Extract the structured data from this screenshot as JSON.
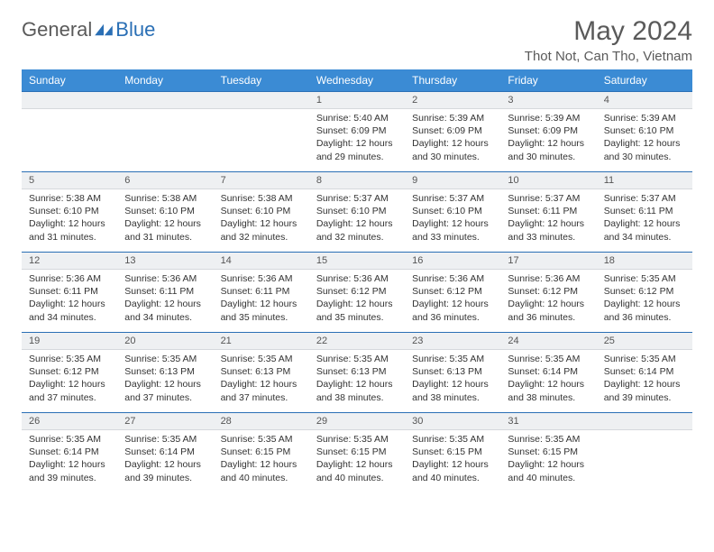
{
  "logo": {
    "general": "General",
    "blue": "Blue"
  },
  "header": {
    "title": "May 2024",
    "location": "Thot Not, Can Tho, Vietnam"
  },
  "colors": {
    "header_bg": "#3b8bd4",
    "border": "#2a6fb5",
    "daynum_bg": "#eef0f2",
    "text": "#333333",
    "muted": "#5a5a5a"
  },
  "weekdays": [
    "Sunday",
    "Monday",
    "Tuesday",
    "Wednesday",
    "Thursday",
    "Friday",
    "Saturday"
  ],
  "weeks": [
    [
      null,
      null,
      null,
      {
        "n": "1",
        "sr": "5:40 AM",
        "ss": "6:09 PM",
        "dl": "12 hours and 29 minutes."
      },
      {
        "n": "2",
        "sr": "5:39 AM",
        "ss": "6:09 PM",
        "dl": "12 hours and 30 minutes."
      },
      {
        "n": "3",
        "sr": "5:39 AM",
        "ss": "6:09 PM",
        "dl": "12 hours and 30 minutes."
      },
      {
        "n": "4",
        "sr": "5:39 AM",
        "ss": "6:10 PM",
        "dl": "12 hours and 30 minutes."
      }
    ],
    [
      {
        "n": "5",
        "sr": "5:38 AM",
        "ss": "6:10 PM",
        "dl": "12 hours and 31 minutes."
      },
      {
        "n": "6",
        "sr": "5:38 AM",
        "ss": "6:10 PM",
        "dl": "12 hours and 31 minutes."
      },
      {
        "n": "7",
        "sr": "5:38 AM",
        "ss": "6:10 PM",
        "dl": "12 hours and 32 minutes."
      },
      {
        "n": "8",
        "sr": "5:37 AM",
        "ss": "6:10 PM",
        "dl": "12 hours and 32 minutes."
      },
      {
        "n": "9",
        "sr": "5:37 AM",
        "ss": "6:10 PM",
        "dl": "12 hours and 33 minutes."
      },
      {
        "n": "10",
        "sr": "5:37 AM",
        "ss": "6:11 PM",
        "dl": "12 hours and 33 minutes."
      },
      {
        "n": "11",
        "sr": "5:37 AM",
        "ss": "6:11 PM",
        "dl": "12 hours and 34 minutes."
      }
    ],
    [
      {
        "n": "12",
        "sr": "5:36 AM",
        "ss": "6:11 PM",
        "dl": "12 hours and 34 minutes."
      },
      {
        "n": "13",
        "sr": "5:36 AM",
        "ss": "6:11 PM",
        "dl": "12 hours and 34 minutes."
      },
      {
        "n": "14",
        "sr": "5:36 AM",
        "ss": "6:11 PM",
        "dl": "12 hours and 35 minutes."
      },
      {
        "n": "15",
        "sr": "5:36 AM",
        "ss": "6:12 PM",
        "dl": "12 hours and 35 minutes."
      },
      {
        "n": "16",
        "sr": "5:36 AM",
        "ss": "6:12 PM",
        "dl": "12 hours and 36 minutes."
      },
      {
        "n": "17",
        "sr": "5:36 AM",
        "ss": "6:12 PM",
        "dl": "12 hours and 36 minutes."
      },
      {
        "n": "18",
        "sr": "5:35 AM",
        "ss": "6:12 PM",
        "dl": "12 hours and 36 minutes."
      }
    ],
    [
      {
        "n": "19",
        "sr": "5:35 AM",
        "ss": "6:12 PM",
        "dl": "12 hours and 37 minutes."
      },
      {
        "n": "20",
        "sr": "5:35 AM",
        "ss": "6:13 PM",
        "dl": "12 hours and 37 minutes."
      },
      {
        "n": "21",
        "sr": "5:35 AM",
        "ss": "6:13 PM",
        "dl": "12 hours and 37 minutes."
      },
      {
        "n": "22",
        "sr": "5:35 AM",
        "ss": "6:13 PM",
        "dl": "12 hours and 38 minutes."
      },
      {
        "n": "23",
        "sr": "5:35 AM",
        "ss": "6:13 PM",
        "dl": "12 hours and 38 minutes."
      },
      {
        "n": "24",
        "sr": "5:35 AM",
        "ss": "6:14 PM",
        "dl": "12 hours and 38 minutes."
      },
      {
        "n": "25",
        "sr": "5:35 AM",
        "ss": "6:14 PM",
        "dl": "12 hours and 39 minutes."
      }
    ],
    [
      {
        "n": "26",
        "sr": "5:35 AM",
        "ss": "6:14 PM",
        "dl": "12 hours and 39 minutes."
      },
      {
        "n": "27",
        "sr": "5:35 AM",
        "ss": "6:14 PM",
        "dl": "12 hours and 39 minutes."
      },
      {
        "n": "28",
        "sr": "5:35 AM",
        "ss": "6:15 PM",
        "dl": "12 hours and 40 minutes."
      },
      {
        "n": "29",
        "sr": "5:35 AM",
        "ss": "6:15 PM",
        "dl": "12 hours and 40 minutes."
      },
      {
        "n": "30",
        "sr": "5:35 AM",
        "ss": "6:15 PM",
        "dl": "12 hours and 40 minutes."
      },
      {
        "n": "31",
        "sr": "5:35 AM",
        "ss": "6:15 PM",
        "dl": "12 hours and 40 minutes."
      },
      null
    ]
  ],
  "labels": {
    "sunrise": "Sunrise:",
    "sunset": "Sunset:",
    "daylight": "Daylight:"
  }
}
